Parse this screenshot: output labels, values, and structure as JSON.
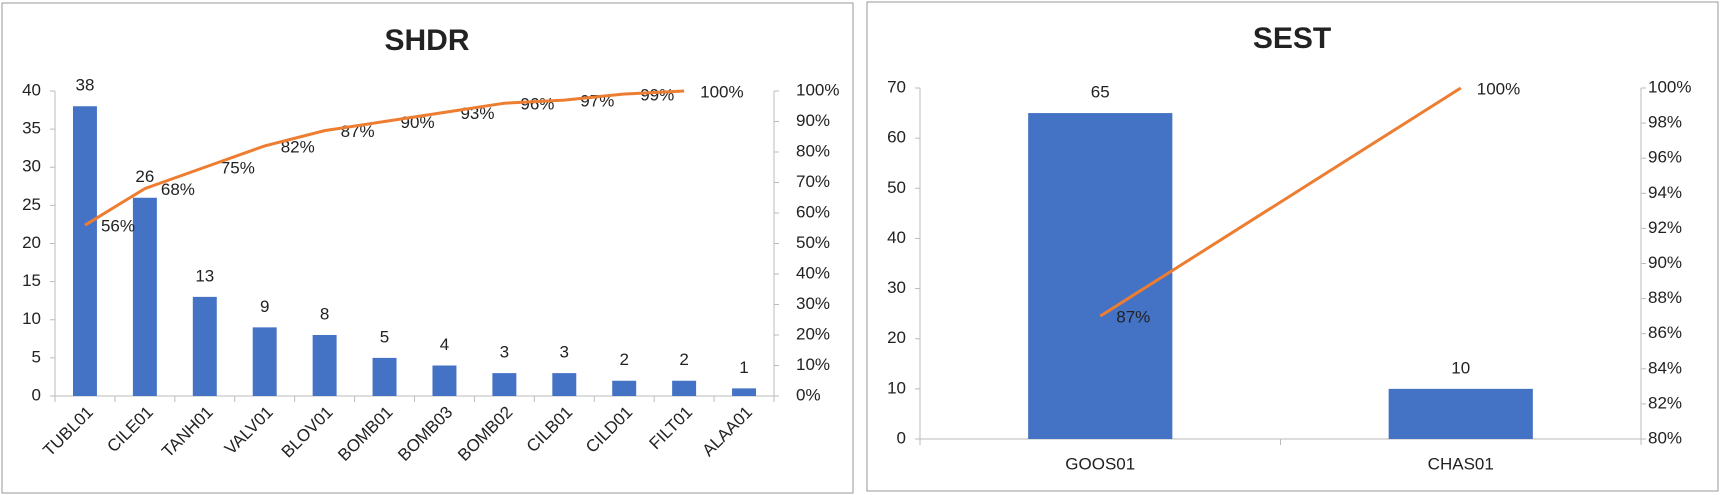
{
  "chart_data": [
    {
      "type": "bar",
      "title": "SHDR",
      "categories": [
        "TUBL01",
        "CILE01",
        "TANH01",
        "VALV01",
        "BLOV01",
        "BOMB01",
        "BOMB03",
        "BOMB02",
        "CILB01",
        "CILD01",
        "FILT01",
        "ALAA01"
      ],
      "series": [
        {
          "type": "bar",
          "color": "#4472c4",
          "values": [
            38,
            26,
            13,
            9,
            8,
            5,
            4,
            3,
            3,
            2,
            2,
            1
          ]
        },
        {
          "type": "line",
          "axis": "y2",
          "color": "#ed7d31",
          "values": [
            56,
            68,
            75,
            82,
            87,
            90,
            93,
            96,
            97,
            99,
            100,
            null
          ],
          "value_labels": [
            "56%",
            "68%",
            "75%",
            "82%",
            "87%",
            "90%",
            "93%",
            "96%",
            "97%",
            "99%",
            "100%",
            null
          ]
        }
      ],
      "ylim": [
        0,
        40
      ],
      "yticks": [
        0,
        5,
        10,
        15,
        20,
        25,
        30,
        35,
        40
      ],
      "y2lim": [
        0,
        100
      ],
      "y2ticks": [
        {
          "value": 0,
          "label": "0%"
        },
        {
          "value": 10,
          "label": "10%"
        },
        {
          "value": 20,
          "label": "20%"
        },
        {
          "value": 30,
          "label": "30%"
        },
        {
          "value": 40,
          "label": "40%"
        },
        {
          "value": 50,
          "label": "50%"
        },
        {
          "value": 60,
          "label": "60%"
        },
        {
          "value": 70,
          "label": "70%"
        },
        {
          "value": 80,
          "label": "80%"
        },
        {
          "value": 90,
          "label": "90%"
        },
        {
          "value": 100,
          "label": "100%"
        }
      ],
      "rotate_labels": true
    },
    {
      "type": "bar",
      "title": "SEST",
      "categories": [
        "GOOS01",
        "CHAS01"
      ],
      "series": [
        {
          "type": "bar",
          "color": "#4472c4",
          "values": [
            65,
            10
          ]
        },
        {
          "type": "line",
          "axis": "y2",
          "color": "#ed7d31",
          "values": [
            87,
            100
          ],
          "value_labels": [
            "87%",
            "100%"
          ]
        }
      ],
      "ylim": [
        0,
        70
      ],
      "yticks": [
        0,
        10,
        20,
        30,
        40,
        50,
        60,
        70
      ],
      "y2lim": [
        80,
        100
      ],
      "y2ticks": [
        {
          "value": 80,
          "label": "80%"
        },
        {
          "value": 82,
          "label": "82%"
        },
        {
          "value": 84,
          "label": "84%"
        },
        {
          "value": 86,
          "label": "86%"
        },
        {
          "value": 88,
          "label": "88%"
        },
        {
          "value": 90,
          "label": "90%"
        },
        {
          "value": 92,
          "label": "92%"
        },
        {
          "value": 94,
          "label": "94%"
        },
        {
          "value": 96,
          "label": "96%"
        },
        {
          "value": 98,
          "label": "98%"
        },
        {
          "value": 100,
          "label": "100%"
        }
      ],
      "rotate_labels": false
    }
  ]
}
